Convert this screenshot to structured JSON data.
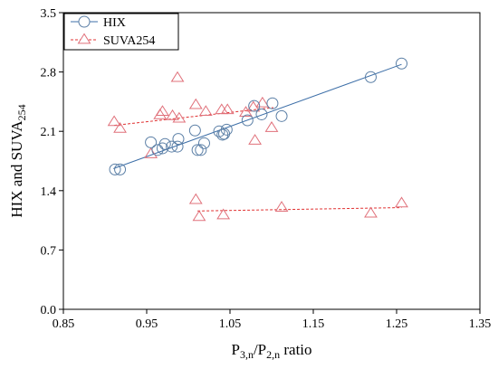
{
  "chart_data": {
    "type": "scatter",
    "title": "",
    "xlabel": {
      "main1": "P",
      "sub1": "3,n",
      "main2": "/P",
      "sub2": "2,n",
      "main3": " ratio"
    },
    "ylabel": {
      "main": "HIX and SUVA",
      "sub": "254"
    },
    "xlim": [
      0.85,
      1.35
    ],
    "ylim": [
      0.0,
      3.5
    ],
    "xticks": [
      "0.85",
      "0.95",
      "1.05",
      "1.15",
      "1.25",
      "1.35"
    ],
    "yticks": [
      "0.0",
      "0.7",
      "1.4",
      "2.1",
      "2.8",
      "3.5"
    ],
    "xtick_values": [
      0.85,
      0.95,
      1.05,
      1.15,
      1.25,
      1.35
    ],
    "ytick_values": [
      0.0,
      0.7,
      1.4,
      2.1,
      2.8,
      3.5
    ],
    "legend_position": "top-left",
    "series": [
      {
        "name": "HIX",
        "marker": "circle",
        "color": "#5b7fa6",
        "line_color": "#3d6fa8",
        "line_style": "solid",
        "points": [
          [
            0.912,
            1.65
          ],
          [
            0.918,
            1.65
          ],
          [
            0.955,
            1.97
          ],
          [
            0.963,
            1.88
          ],
          [
            0.969,
            1.9
          ],
          [
            0.972,
            1.95
          ],
          [
            0.98,
            1.92
          ],
          [
            0.987,
            1.92
          ],
          [
            0.988,
            2.01
          ],
          [
            1.008,
            2.11
          ],
          [
            1.011,
            1.88
          ],
          [
            1.015,
            1.88
          ],
          [
            1.019,
            1.96
          ],
          [
            1.037,
            2.1
          ],
          [
            1.041,
            2.06
          ],
          [
            1.043,
            2.07
          ],
          [
            1.046,
            2.12
          ],
          [
            1.071,
            2.23
          ],
          [
            1.079,
            2.4
          ],
          [
            1.088,
            2.3
          ],
          [
            1.101,
            2.43
          ],
          [
            1.112,
            2.28
          ],
          [
            1.219,
            2.74
          ],
          [
            1.256,
            2.9
          ]
        ],
        "trend": [
          [
            0.91,
            1.66
          ],
          [
            1.256,
            2.89
          ]
        ]
      },
      {
        "name": "SUVA254",
        "marker": "triangle",
        "color": "#e0707a",
        "line_color": "#e03030",
        "line_style": "dashed",
        "points": [
          [
            0.911,
            2.21
          ],
          [
            0.918,
            2.13
          ],
          [
            0.955,
            1.83
          ],
          [
            0.966,
            2.29
          ],
          [
            0.969,
            2.33
          ],
          [
            0.981,
            2.28
          ],
          [
            0.987,
            2.73
          ],
          [
            0.989,
            2.25
          ],
          [
            1.009,
            2.41
          ],
          [
            1.021,
            2.33
          ],
          [
            1.04,
            2.35
          ],
          [
            1.047,
            2.35
          ],
          [
            1.069,
            2.32
          ],
          [
            1.078,
            2.38
          ],
          [
            1.08,
            1.99
          ],
          [
            1.089,
            2.43
          ],
          [
            1.1,
            2.14
          ],
          [
            1.009,
            1.29
          ],
          [
            1.013,
            1.09
          ],
          [
            1.042,
            1.11
          ],
          [
            1.112,
            1.2
          ],
          [
            1.219,
            1.13
          ],
          [
            1.256,
            1.25
          ]
        ],
        "trends": [
          [
            [
              0.911,
              2.17
            ],
            [
              1.102,
              2.38
            ]
          ],
          [
            [
              1.011,
              1.16
            ],
            [
              1.256,
              1.2
            ]
          ]
        ]
      }
    ]
  }
}
